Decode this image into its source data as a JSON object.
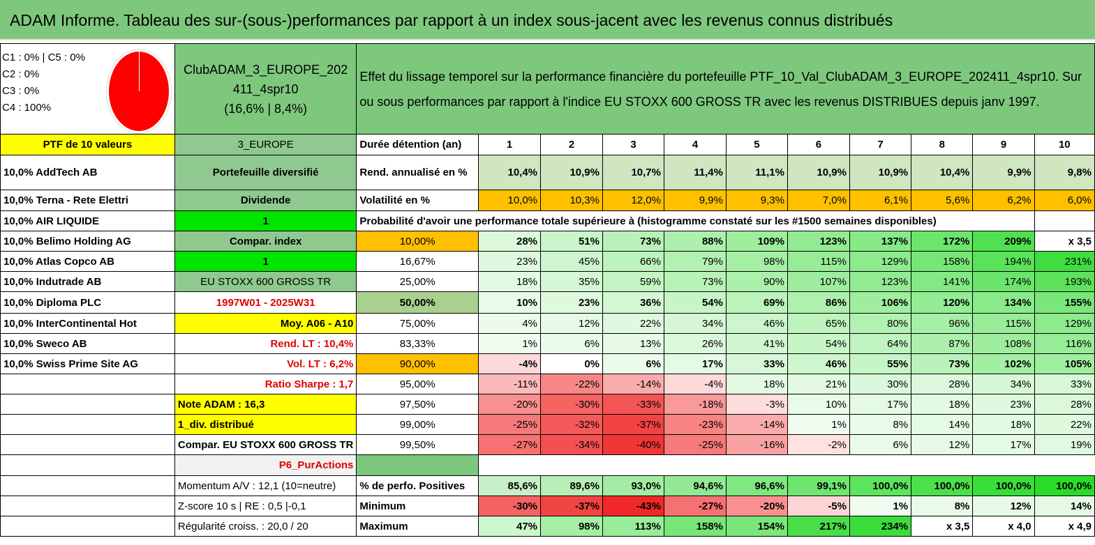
{
  "title": "ADAM Informe. Tableau des sur-(sous-)performances par rapport à un index sous-jacent avec les revenus connus distribués",
  "pie_legend": [
    "C1 : 0% | C5 : 0%",
    "C2 : 0%",
    "C3 : 0%",
    "C4 : 100%"
  ],
  "fund_name_1": "ClubADAM_3_EUROPE_202",
  "fund_name_2": "411_4spr10",
  "fund_name_3": "(16,6% | 8,4%)",
  "description": "Effet du lissage temporel sur la performance financière du portefeuille PTF_10_Val_ClubADAM_3_EUROPE_202411_4spr10. Sur ou sous performances par rapport à l'indice EU STOXX 600 GROSS TR avec les revenus DISTRIBUES depuis janv 1997.",
  "ptf_header": "PTF de 10 valeurs",
  "region": "3_EUROPE",
  "duration_label": "Durée détention (an)",
  "years": [
    "1",
    "2",
    "3",
    "4",
    "5",
    "6",
    "7",
    "8",
    "9",
    "10"
  ],
  "holdings": [
    "10,0% AddTech AB",
    "10,0% Terna - Rete Elettri",
    "10,0% AIR LIQUIDE",
    "10,0% Belimo Holding AG",
    "10,0% Atlas Copco AB",
    "10,0% Indutrade AB",
    "10,0% Diploma PLC",
    "10,0% InterContinental Hot",
    "10,0% Sweco AB",
    "10,0% Swiss Prime Site AG"
  ],
  "info": {
    "diversified": "Portefeuille diversifié",
    "dividend": "Dividende",
    "one_a": "1",
    "compar_index": "Compar. index",
    "one_b": "1",
    "index_name": "EU STOXX 600 GROSS TR",
    "period": "1997W01 - 2025W31",
    "moy": "Moy. A06 - A10",
    "rend_lt": "Rend. LT : 10,4%",
    "vol_lt": "Vol. LT : 6,2%",
    "sharpe": "Ratio Sharpe : 1,7",
    "note": "Note ADAM : 16,3",
    "div": "1_div. distribué",
    "compar": "Compar. EU STOXX 600 GROSS TR",
    "p6": "P6_PurActions",
    "momentum": "Momentum A/V : 12,1 (10=neutre)",
    "zscore": "Z-score 10 s | RE : 0,5 |-0,1",
    "regularite": "Régularité croiss. : 20,0 / 20"
  },
  "rend_label": "Rend. annualisé en %",
  "rend": [
    "10,4%",
    "10,9%",
    "10,7%",
    "11,4%",
    "11,1%",
    "10,9%",
    "10,9%",
    "10,4%",
    "9,9%",
    "9,8%"
  ],
  "vol_label": "Volatilité en %",
  "vol": [
    "10,0%",
    "10,3%",
    "12,0%",
    "9,9%",
    "9,3%",
    "7,0%",
    "6,1%",
    "5,6%",
    "6,2%",
    "6,0%"
  ],
  "proba_header": "Probabilité d'avoir une performance totale supérieure à (histogramme constaté sur les #1500 semaines disponibles)",
  "proba_rows": [
    {
      "p": "10,00%",
      "v": [
        "28%",
        "51%",
        "73%",
        "88%",
        "109%",
        "123%",
        "137%",
        "172%",
        "209%",
        "x 3,5"
      ]
    },
    {
      "p": "16,67%",
      "v": [
        "23%",
        "45%",
        "66%",
        "79%",
        "98%",
        "115%",
        "129%",
        "158%",
        "194%",
        "231%"
      ]
    },
    {
      "p": "25,00%",
      "v": [
        "18%",
        "35%",
        "59%",
        "73%",
        "90%",
        "107%",
        "123%",
        "141%",
        "174%",
        "193%"
      ]
    },
    {
      "p": "50,00%",
      "v": [
        "10%",
        "23%",
        "36%",
        "54%",
        "69%",
        "86%",
        "106%",
        "120%",
        "134%",
        "155%"
      ]
    },
    {
      "p": "75,00%",
      "v": [
        "4%",
        "12%",
        "22%",
        "34%",
        "46%",
        "65%",
        "80%",
        "96%",
        "115%",
        "129%"
      ]
    },
    {
      "p": "83,33%",
      "v": [
        "1%",
        "6%",
        "13%",
        "26%",
        "41%",
        "54%",
        "64%",
        "87%",
        "108%",
        "116%"
      ]
    },
    {
      "p": "90,00%",
      "v": [
        "-4%",
        "0%",
        "6%",
        "17%",
        "33%",
        "46%",
        "55%",
        "73%",
        "102%",
        "105%"
      ]
    },
    {
      "p": "95,00%",
      "v": [
        "-11%",
        "-22%",
        "-14%",
        "-4%",
        "18%",
        "21%",
        "30%",
        "28%",
        "34%",
        "33%"
      ]
    },
    {
      "p": "97,50%",
      "v": [
        "-20%",
        "-30%",
        "-33%",
        "-18%",
        "-3%",
        "10%",
        "17%",
        "18%",
        "23%",
        "28%"
      ]
    },
    {
      "p": "99,00%",
      "v": [
        "-25%",
        "-32%",
        "-37%",
        "-23%",
        "-14%",
        "1%",
        "8%",
        "14%",
        "18%",
        "22%"
      ]
    },
    {
      "p": "99,50%",
      "v": [
        "-27%",
        "-34%",
        "-40%",
        "-25%",
        "-16%",
        "-2%",
        "6%",
        "12%",
        "17%",
        "19%"
      ]
    }
  ],
  "pos_label": "% de perfo. Positives",
  "pos": [
    "85,6%",
    "89,6%",
    "93,0%",
    "94,6%",
    "96,6%",
    "99,1%",
    "100,0%",
    "100,0%",
    "100,0%",
    "100,0%"
  ],
  "min_label": "Minimum",
  "min": [
    "-30%",
    "-37%",
    "-43%",
    "-27%",
    "-20%",
    "-5%",
    "1%",
    "8%",
    "12%",
    "14%"
  ],
  "max_label": "Maximum",
  "max": [
    "47%",
    "98%",
    "113%",
    "158%",
    "154%",
    "217%",
    "234%",
    "x 3,5",
    "x 4,0",
    "x 4,9"
  ]
}
